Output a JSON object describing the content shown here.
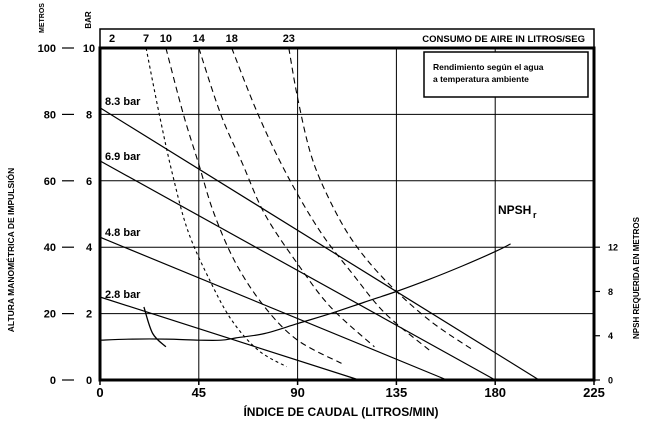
{
  "chart_data": {
    "type": "line",
    "axes": {
      "x": {
        "label": "ÍNDICE DE CAUDAL (LITROS/MIN)",
        "range": [
          0,
          225
        ],
        "ticks": [
          0,
          45,
          90,
          135,
          180,
          225
        ]
      },
      "y_left_meters": {
        "label": "ALTURA MANOMÉTRICA DE IMPULSIÓN",
        "unit": "METROS",
        "range": [
          0,
          100
        ],
        "ticks": [
          0,
          20,
          40,
          60,
          80,
          100
        ]
      },
      "y_left_bar": {
        "unit": "BAR",
        "range": [
          0,
          10
        ],
        "ticks": [
          0,
          2,
          4,
          6,
          8,
          10
        ]
      },
      "y_right": {
        "label": "NPSH REQUERIDA EN METROS",
        "range": [
          0,
          30
        ],
        "ticks": [
          0,
          4,
          8,
          12
        ]
      },
      "air_axis": {
        "label": "CONSUMO DE AIRE IN LITROS/SEG",
        "ticks": [
          "2",
          "7",
          "10",
          "14",
          "18",
          "23"
        ]
      }
    },
    "grid": true,
    "note": [
      "Rendimiento según el agua",
      "a temperatura ambiente"
    ],
    "pressure_curves": [
      {
        "name": "8.3 bar",
        "x": [
          0,
          200
        ],
        "y": [
          82,
          0
        ]
      },
      {
        "name": "6.9 bar",
        "x": [
          0,
          180
        ],
        "y": [
          66,
          0
        ]
      },
      {
        "name": "4.8 bar",
        "x": [
          0,
          158
        ],
        "y": [
          43,
          0
        ]
      },
      {
        "name": "2.8 bar",
        "x": [
          0,
          118
        ],
        "y": [
          25,
          0
        ]
      }
    ],
    "npsh": {
      "name": "NPSH",
      "subscript": "r",
      "x": [
        0,
        15,
        30,
        45,
        55,
        62,
        75,
        90,
        105,
        120,
        135,
        150,
        165,
        180,
        187
      ],
      "y": [
        3.6,
        3.7,
        3.7,
        3.6,
        3.6,
        3.8,
        4.2,
        5.1,
        6.0,
        7.0,
        8.0,
        9.1,
        10.3,
        11.6,
        12.3
      ]
    },
    "air_consumption_curves": [
      {
        "name": "2",
        "x": [
          20,
          24,
          30
        ],
        "y": [
          22,
          14,
          10
        ]
      },
      {
        "name": "7",
        "x": [
          21,
          27,
          33,
          40,
          50,
          60,
          72,
          85
        ],
        "y": [
          100,
          80,
          62,
          45,
          30,
          18,
          9,
          4
        ]
      },
      {
        "name": "10",
        "x": [
          30,
          38,
          45,
          52,
          62,
          75,
          90,
          110
        ],
        "y": [
          100,
          80,
          65,
          50,
          35,
          22,
          12,
          5
        ]
      },
      {
        "name": "14",
        "x": [
          45,
          55,
          65,
          75,
          90,
          105,
          125
        ],
        "y": [
          100,
          80,
          65,
          50,
          35,
          22,
          10
        ]
      },
      {
        "name": "18",
        "x": [
          60,
          72,
          85,
          100,
          115,
          130,
          150
        ],
        "y": [
          100,
          80,
          62,
          45,
          32,
          20,
          9
        ]
      },
      {
        "name": "23",
        "x": [
          86,
          90,
          96,
          104,
          115,
          130,
          150,
          170
        ],
        "y": [
          100,
          85,
          68,
          55,
          42,
          30,
          18,
          9
        ]
      }
    ]
  }
}
